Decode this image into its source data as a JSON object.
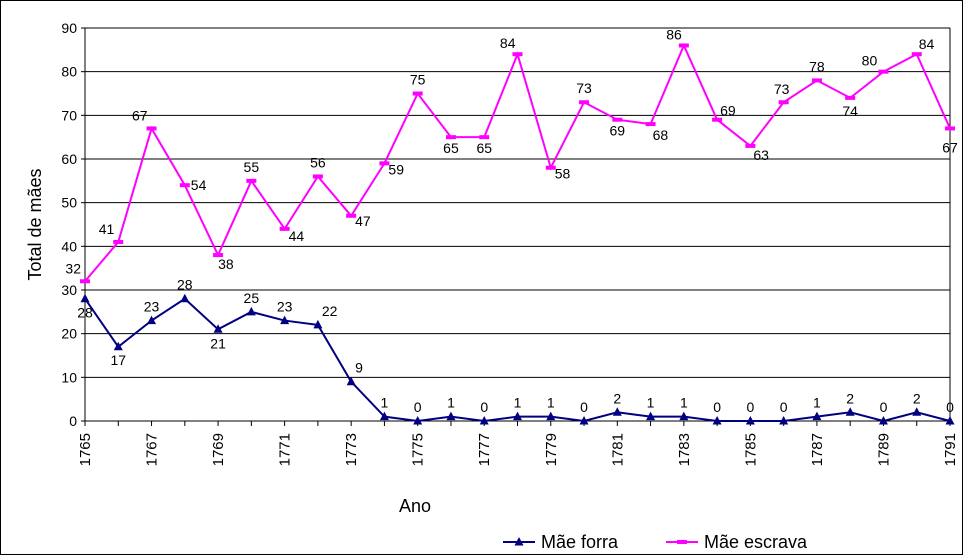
{
  "chart_data": {
    "type": "line",
    "title": "",
    "xlabel": "Ano",
    "ylabel": "Total de mães",
    "ylim": [
      0,
      90
    ],
    "yticks": [
      0,
      10,
      20,
      30,
      40,
      50,
      60,
      70,
      80,
      90
    ],
    "x": [
      1765,
      1766,
      1767,
      1768,
      1769,
      1770,
      1771,
      1772,
      1773,
      1774,
      1775,
      1776,
      1777,
      1778,
      1779,
      1780,
      1781,
      1782,
      1783,
      1784,
      1785,
      1786,
      1787,
      1788,
      1789,
      1790,
      1791
    ],
    "xtick_labels": [
      "1765",
      "1767",
      "1769",
      "1771",
      "1773",
      "1775",
      "1777",
      "1779",
      "1781",
      "1783",
      "1785",
      "1787",
      "1789",
      "1791"
    ],
    "grid": "horizontal",
    "legend_position": "bottom",
    "series": [
      {
        "name": "Mãe forra",
        "color": "#000080",
        "marker": "triangle",
        "values": [
          28,
          17,
          23,
          28,
          21,
          25,
          23,
          22,
          9,
          1,
          0,
          1,
          0,
          1,
          1,
          0,
          2,
          1,
          1,
          0,
          0,
          0,
          1,
          2,
          0,
          2,
          0
        ]
      },
      {
        "name": "Mãe escrava",
        "color": "#FF00FF",
        "marker": "dash",
        "values": [
          32,
          41,
          67,
          54,
          38,
          55,
          44,
          56,
          47,
          59,
          75,
          65,
          65,
          84,
          58,
          73,
          69,
          68,
          86,
          69,
          63,
          73,
          78,
          74,
          80,
          84,
          67
        ]
      }
    ]
  }
}
